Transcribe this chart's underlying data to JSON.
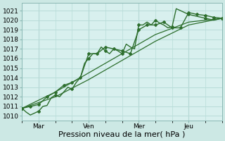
{
  "bg_color": "#cce8e4",
  "plot_bg_color": "#d8f0ee",
  "grid_color": "#b8dcd8",
  "line_color": "#2d6e2d",
  "ylim": [
    1009.5,
    1021.8
  ],
  "yticks": [
    1010,
    1011,
    1012,
    1013,
    1014,
    1015,
    1016,
    1017,
    1018,
    1019,
    1020,
    1021
  ],
  "xlabel": "Pression niveau de la mer( hPa )",
  "xlabel_fontsize": 8,
  "tick_fontsize": 6.5,
  "xtick_labels": [
    "Mar",
    "Ven",
    "Mer",
    "Jeu"
  ],
  "xtick_positions": [
    24,
    96,
    168,
    240
  ],
  "xlim": [
    0,
    288
  ],
  "vline_positions": [
    24,
    96,
    168,
    240
  ],
  "lines": [
    {
      "x": [
        0,
        6,
        12,
        18,
        24,
        30,
        36,
        42,
        48,
        54,
        60,
        66,
        72,
        78,
        84,
        90,
        96,
        102,
        108,
        114,
        120,
        126,
        132,
        138,
        144,
        150,
        156,
        162,
        168,
        174,
        180,
        186,
        192,
        198,
        204,
        210,
        216,
        222,
        228,
        234,
        240,
        246,
        252,
        258,
        264,
        270,
        276,
        282,
        288
      ],
      "y": [
        1010.8,
        1010.4,
        1010.1,
        1010.3,
        1010.5,
        1011.0,
        1011.1,
        1011.9,
        1012.2,
        1012.0,
        1012.5,
        1013.0,
        1012.8,
        1013.5,
        1014.0,
        1015.5,
        1016.0,
        1016.5,
        1016.5,
        1017.2,
        1016.8,
        1016.5,
        1017.0,
        1016.8,
        1016.5,
        1017.5,
        1017.2,
        1017.0,
        1019.5,
        1019.5,
        1019.8,
        1019.5,
        1020.0,
        1019.7,
        1019.5,
        1019.2,
        1019.3,
        1021.2,
        1021.0,
        1020.8,
        1020.6,
        1020.5,
        1020.4,
        1020.3,
        1020.2,
        1020.1,
        1020.0,
        1020.1,
        1020.2
      ],
      "marker": "D",
      "markersize": 2.0,
      "linewidth": 1.0,
      "linestyle": "-",
      "markevery": 4
    },
    {
      "x": [
        0,
        12,
        24,
        36,
        48,
        60,
        72,
        84,
        96,
        108,
        120,
        132,
        144,
        156,
        168,
        180,
        192,
        204,
        216,
        228,
        240,
        252,
        264,
        276,
        288
      ],
      "y": [
        1010.8,
        1011.0,
        1011.2,
        1012.0,
        1012.5,
        1013.2,
        1013.5,
        1014.0,
        1016.5,
        1016.5,
        1017.2,
        1017.0,
        1016.8,
        1016.5,
        1019.0,
        1019.5,
        1019.5,
        1019.8,
        1019.2,
        1019.2,
        1020.8,
        1020.6,
        1020.5,
        1020.3,
        1020.2
      ],
      "marker": "D",
      "markersize": 2.0,
      "linewidth": 1.0,
      "linestyle": "-",
      "markevery": 1
    },
    {
      "x": [
        0,
        48,
        96,
        144,
        192,
        240,
        288
      ],
      "y": [
        1010.8,
        1012.5,
        1014.5,
        1016.5,
        1018.5,
        1019.8,
        1020.2
      ],
      "marker": null,
      "markersize": 0,
      "linewidth": 0.9,
      "linestyle": "-",
      "markevery": 1
    },
    {
      "x": [
        0,
        48,
        96,
        144,
        192,
        240,
        288
      ],
      "y": [
        1010.8,
        1012.0,
        1013.8,
        1015.8,
        1017.8,
        1019.5,
        1020.2
      ],
      "marker": null,
      "markersize": 0,
      "linewidth": 0.9,
      "linestyle": "-",
      "markevery": 1
    }
  ]
}
